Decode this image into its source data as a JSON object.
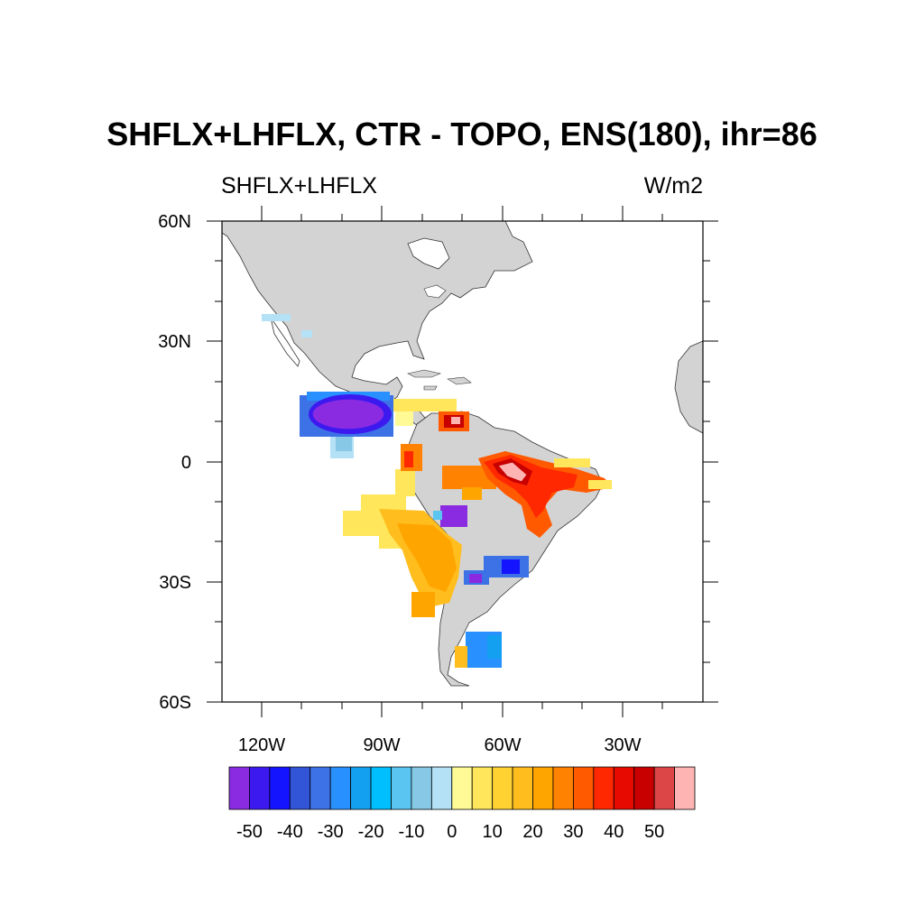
{
  "header": {
    "title": "SHFLX+LHFLX, CTR - TOPO, ENS(180), ihr=86",
    "left_label": "SHFLX+LHFLX",
    "right_label": "W/m2"
  },
  "axes": {
    "lat_labels": [
      "60N",
      "30N",
      "0",
      "30S",
      "60S"
    ],
    "lon_labels": [
      "120W",
      "90W",
      "60W",
      "30W"
    ]
  },
  "colorbar": {
    "labels": [
      "-50",
      "-40",
      "-30",
      "-20",
      "-10",
      "0",
      "10",
      "20",
      "30",
      "40",
      "50"
    ],
    "colors": [
      "#8a2be2",
      "#3c1aef",
      "#1414ff",
      "#3254d6",
      "#3c72e6",
      "#2891ff",
      "#14a0f0",
      "#00bfff",
      "#5ac5f0",
      "#87c8e6",
      "#b4e1f5",
      "#fffa96",
      "#ffe65a",
      "#ffd232",
      "#ffbe1e",
      "#ffa500",
      "#ff8200",
      "#ff5a00",
      "#ff2800",
      "#e60a00",
      "#c80000",
      "#dc4646",
      "#ffb4b4"
    ]
  },
  "map": {
    "projection": "cylindrical-equidistant",
    "lon_range": [
      -130,
      -5
    ],
    "lat_range": [
      -60,
      60
    ],
    "land_color": "#d3d3d3",
    "ocean_color": "#ffffff"
  }
}
